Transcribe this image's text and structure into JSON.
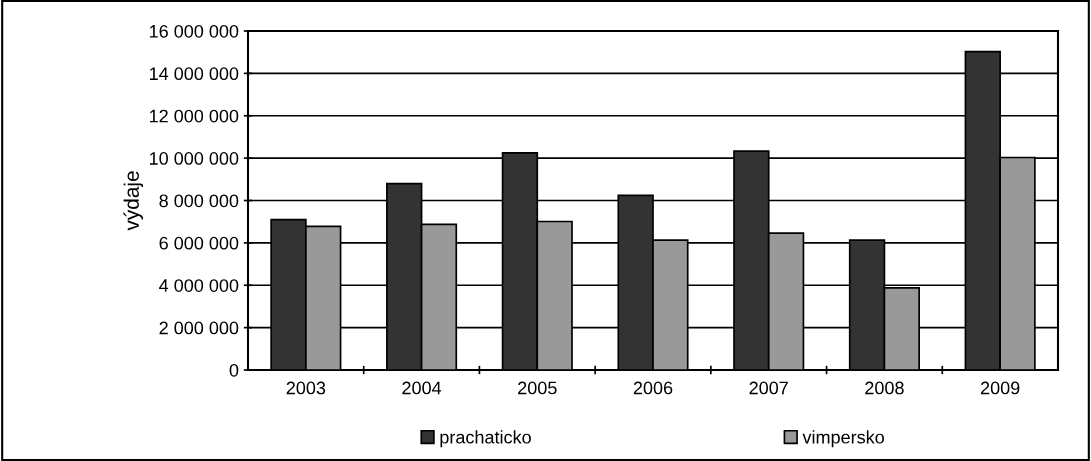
{
  "chart_data": {
    "type": "bar",
    "ylabel": "výdaje",
    "categories": [
      "2003",
      "2004",
      "2005",
      "2006",
      "2007",
      "2008",
      "2009"
    ],
    "series": [
      {
        "name": "prachaticko",
        "color": "#333333",
        "values": [
          7100000,
          8800000,
          10250000,
          8240000,
          10330000,
          6130000,
          15030000
        ]
      },
      {
        "name": "vimpersko",
        "color": "#999999",
        "values": [
          6780000,
          6870000,
          7010000,
          6130000,
          6460000,
          3880000,
          10030000
        ]
      }
    ],
    "ylim": [
      0,
      16000000
    ],
    "yticks": [
      {
        "value": 0,
        "label": "0"
      },
      {
        "value": 2000000,
        "label": "2 000 000"
      },
      {
        "value": 4000000,
        "label": "4 000 000"
      },
      {
        "value": 6000000,
        "label": "6 000 000"
      },
      {
        "value": 8000000,
        "label": "8 000 000"
      },
      {
        "value": 10000000,
        "label": "10 000 000"
      },
      {
        "value": 12000000,
        "label": "12 000 000"
      },
      {
        "value": 14000000,
        "label": "14 000 000"
      },
      {
        "value": 16000000,
        "label": "16 000 000"
      }
    ],
    "grid": "y",
    "legend": "bottom"
  }
}
